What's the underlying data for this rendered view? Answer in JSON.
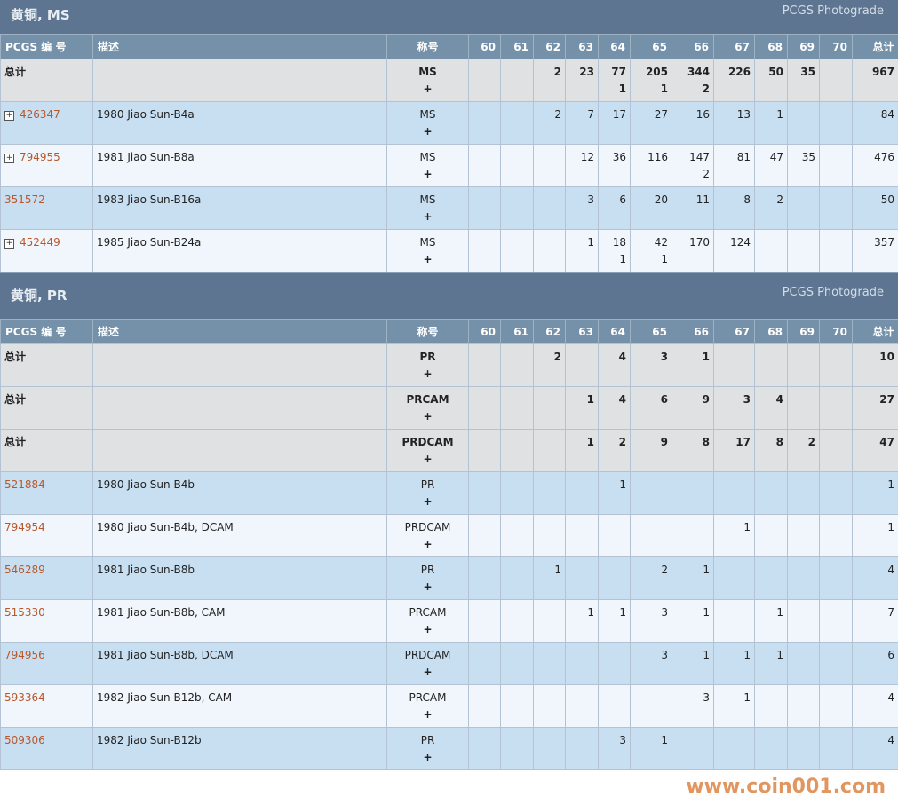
{
  "columns": [
    "PCGS 编 号",
    "描述",
    "称号",
    "60",
    "61",
    "62",
    "63",
    "64",
    "65",
    "66",
    "67",
    "68",
    "69",
    "70",
    "总计"
  ],
  "sections": [
    {
      "title": "黄铜, MS",
      "subtitle": "PCGS Photograde",
      "rows": [
        {
          "type": "total",
          "id": "总计",
          "desc": "",
          "designation": "MS",
          "plus": "+",
          "cells": [
            [
              "",
              ""
            ],
            [
              "",
              ""
            ],
            [
              "2",
              ""
            ],
            [
              "23",
              ""
            ],
            [
              "77",
              "1"
            ],
            [
              "205",
              "1"
            ],
            [
              "344",
              "2"
            ],
            [
              "226",
              ""
            ],
            [
              "50",
              ""
            ],
            [
              "35",
              ""
            ],
            [
              "",
              ""
            ]
          ],
          "total": "967"
        },
        {
          "type": "item",
          "expand": true,
          "id": "426347",
          "desc": "1980 Jiao Sun-B4a",
          "designation": "MS",
          "plus": "+",
          "cells": [
            [
              "",
              ""
            ],
            [
              "",
              ""
            ],
            [
              "2",
              ""
            ],
            [
              "7",
              ""
            ],
            [
              "17",
              ""
            ],
            [
              "27",
              ""
            ],
            [
              "16",
              ""
            ],
            [
              "13",
              ""
            ],
            [
              "1",
              ""
            ],
            [
              "",
              ""
            ],
            [
              "",
              ""
            ]
          ],
          "total": "84"
        },
        {
          "type": "item",
          "expand": true,
          "id": "794955",
          "desc": "1981 Jiao Sun-B8a",
          "designation": "MS",
          "plus": "+",
          "cells": [
            [
              "",
              ""
            ],
            [
              "",
              ""
            ],
            [
              "",
              ""
            ],
            [
              "12",
              ""
            ],
            [
              "36",
              ""
            ],
            [
              "116",
              ""
            ],
            [
              "147",
              "2"
            ],
            [
              "81",
              ""
            ],
            [
              "47",
              ""
            ],
            [
              "35",
              ""
            ],
            [
              "",
              ""
            ]
          ],
          "total": "476"
        },
        {
          "type": "item",
          "expand": false,
          "id": "351572",
          "desc": "1983 Jiao Sun-B16a",
          "designation": "MS",
          "plus": "+",
          "cells": [
            [
              "",
              ""
            ],
            [
              "",
              ""
            ],
            [
              "",
              ""
            ],
            [
              "3",
              ""
            ],
            [
              "6",
              ""
            ],
            [
              "20",
              ""
            ],
            [
              "11",
              ""
            ],
            [
              "8",
              ""
            ],
            [
              "2",
              ""
            ],
            [
              "",
              ""
            ],
            [
              "",
              ""
            ]
          ],
          "total": "50"
        },
        {
          "type": "item",
          "expand": true,
          "id": "452449",
          "desc": "1985 Jiao Sun-B24a",
          "designation": "MS",
          "plus": "+",
          "cells": [
            [
              "",
              ""
            ],
            [
              "",
              ""
            ],
            [
              "",
              ""
            ],
            [
              "1",
              ""
            ],
            [
              "18",
              "1"
            ],
            [
              "42",
              "1"
            ],
            [
              "170",
              ""
            ],
            [
              "124",
              ""
            ],
            [
              "",
              ""
            ],
            [
              "",
              ""
            ],
            [
              "",
              ""
            ]
          ],
          "total": "357"
        }
      ]
    },
    {
      "title": "黄铜, PR",
      "subtitle": "PCGS Photograde",
      "rows": [
        {
          "type": "total",
          "id": "总计",
          "desc": "",
          "designation": "PR",
          "plus": "+",
          "cells": [
            [
              "",
              ""
            ],
            [
              "",
              ""
            ],
            [
              "2",
              ""
            ],
            [
              "",
              ""
            ],
            [
              "4",
              ""
            ],
            [
              "3",
              ""
            ],
            [
              "1",
              ""
            ],
            [
              "",
              ""
            ],
            [
              "",
              ""
            ],
            [
              "",
              ""
            ],
            [
              "",
              ""
            ]
          ],
          "total": "10"
        },
        {
          "type": "total",
          "id": "总计",
          "desc": "",
          "designation": "PRCAM",
          "plus": "+",
          "cells": [
            [
              "",
              ""
            ],
            [
              "",
              ""
            ],
            [
              "",
              ""
            ],
            [
              "1",
              ""
            ],
            [
              "4",
              ""
            ],
            [
              "6",
              ""
            ],
            [
              "9",
              ""
            ],
            [
              "3",
              ""
            ],
            [
              "4",
              ""
            ],
            [
              "",
              ""
            ],
            [
              "",
              ""
            ]
          ],
          "total": "27"
        },
        {
          "type": "total",
          "id": "总计",
          "desc": "",
          "designation": "PRDCAM",
          "plus": "+",
          "cells": [
            [
              "",
              ""
            ],
            [
              "",
              ""
            ],
            [
              "",
              ""
            ],
            [
              "1",
              ""
            ],
            [
              "2",
              ""
            ],
            [
              "9",
              ""
            ],
            [
              "8",
              ""
            ],
            [
              "17",
              ""
            ],
            [
              "8",
              ""
            ],
            [
              "2",
              ""
            ],
            [
              "",
              ""
            ]
          ],
          "total": "47"
        },
        {
          "type": "item",
          "expand": false,
          "id": "521884",
          "desc": "1980 Jiao Sun-B4b",
          "designation": "PR",
          "plus": "+",
          "cells": [
            [
              "",
              ""
            ],
            [
              "",
              ""
            ],
            [
              "",
              ""
            ],
            [
              "",
              ""
            ],
            [
              "1",
              ""
            ],
            [
              "",
              ""
            ],
            [
              "",
              ""
            ],
            [
              "",
              ""
            ],
            [
              "",
              ""
            ],
            [
              "",
              ""
            ],
            [
              "",
              ""
            ]
          ],
          "total": "1"
        },
        {
          "type": "item",
          "expand": false,
          "id": "794954",
          "desc": "1980 Jiao Sun-B4b, DCAM",
          "designation": "PRDCAM",
          "plus": "+",
          "cells": [
            [
              "",
              ""
            ],
            [
              "",
              ""
            ],
            [
              "",
              ""
            ],
            [
              "",
              ""
            ],
            [
              "",
              ""
            ],
            [
              "",
              ""
            ],
            [
              "",
              ""
            ],
            [
              "1",
              ""
            ],
            [
              "",
              ""
            ],
            [
              "",
              ""
            ],
            [
              "",
              ""
            ]
          ],
          "total": "1"
        },
        {
          "type": "item",
          "expand": false,
          "id": "546289",
          "desc": "1981 Jiao Sun-B8b",
          "designation": "PR",
          "plus": "+",
          "cells": [
            [
              "",
              ""
            ],
            [
              "",
              ""
            ],
            [
              "1",
              ""
            ],
            [
              "",
              ""
            ],
            [
              "",
              ""
            ],
            [
              "2",
              ""
            ],
            [
              "1",
              ""
            ],
            [
              "",
              ""
            ],
            [
              "",
              ""
            ],
            [
              "",
              ""
            ],
            [
              "",
              ""
            ]
          ],
          "total": "4"
        },
        {
          "type": "item",
          "expand": false,
          "id": "515330",
          "desc": "1981 Jiao Sun-B8b, CAM",
          "designation": "PRCAM",
          "plus": "+",
          "cells": [
            [
              "",
              ""
            ],
            [
              "",
              ""
            ],
            [
              "",
              ""
            ],
            [
              "1",
              ""
            ],
            [
              "1",
              ""
            ],
            [
              "3",
              ""
            ],
            [
              "1",
              ""
            ],
            [
              "",
              ""
            ],
            [
              "1",
              ""
            ],
            [
              "",
              ""
            ],
            [
              "",
              ""
            ]
          ],
          "total": "7"
        },
        {
          "type": "item",
          "expand": false,
          "id": "794956",
          "desc": "1981 Jiao Sun-B8b, DCAM",
          "designation": "PRDCAM",
          "plus": "+",
          "cells": [
            [
              "",
              ""
            ],
            [
              "",
              ""
            ],
            [
              "",
              ""
            ],
            [
              "",
              ""
            ],
            [
              "",
              ""
            ],
            [
              "3",
              ""
            ],
            [
              "1",
              ""
            ],
            [
              "1",
              ""
            ],
            [
              "1",
              ""
            ],
            [
              "",
              ""
            ],
            [
              "",
              ""
            ]
          ],
          "total": "6"
        },
        {
          "type": "item",
          "expand": false,
          "id": "593364",
          "desc": "1982 Jiao Sun-B12b, CAM",
          "designation": "PRCAM",
          "plus": "+",
          "cells": [
            [
              "",
              ""
            ],
            [
              "",
              ""
            ],
            [
              "",
              ""
            ],
            [
              "",
              ""
            ],
            [
              "",
              ""
            ],
            [
              "",
              ""
            ],
            [
              "3",
              ""
            ],
            [
              "1",
              ""
            ],
            [
              "",
              ""
            ],
            [
              "",
              ""
            ],
            [
              "",
              ""
            ]
          ],
          "total": "4"
        },
        {
          "type": "item",
          "expand": false,
          "id": "509306",
          "desc": "1982 Jiao Sun-B12b",
          "designation": "PR",
          "plus": "+",
          "cells": [
            [
              "",
              ""
            ],
            [
              "",
              ""
            ],
            [
              "",
              ""
            ],
            [
              "",
              ""
            ],
            [
              "3",
              ""
            ],
            [
              "1",
              ""
            ],
            [
              "",
              ""
            ],
            [
              "",
              ""
            ],
            [
              "",
              ""
            ],
            [
              "",
              ""
            ],
            [
              "",
              ""
            ]
          ],
          "total": "4"
        }
      ]
    }
  ],
  "watermark": "www.coin001.com",
  "colors": {
    "header": "#5d7590",
    "column_header": "#7591aa",
    "total_row": "#e0e1e3",
    "row_odd": "#c8dff2",
    "row_even": "#f0f6fb",
    "link": "#b8582a"
  }
}
